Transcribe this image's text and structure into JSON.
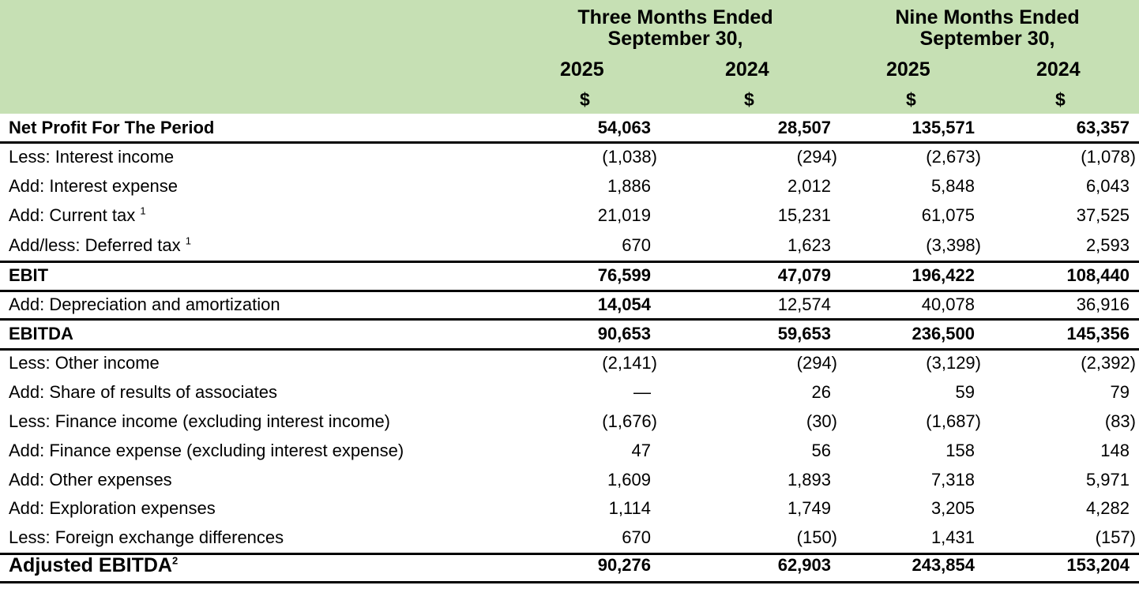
{
  "header": {
    "groups": [
      {
        "line1": "Three Months Ended",
        "line2": "September 30,"
      },
      {
        "line1": "Nine Months Ended",
        "line2": "September 30,"
      }
    ],
    "years": [
      "2025",
      "2024",
      "2025",
      "2024"
    ],
    "currency": [
      "$",
      "$",
      "$",
      "$"
    ]
  },
  "rows": [
    {
      "label": "Net Profit For The Period",
      "sup": "",
      "values": [
        "54,063",
        "28,507",
        "135,571",
        "63,357"
      ]
    },
    {
      "label": "Less: Interest income",
      "sup": "",
      "values": [
        "(1,038)",
        "(294)",
        "(2,673)",
        "(1,078)"
      ]
    },
    {
      "label": "Add: Interest expense",
      "sup": "",
      "values": [
        "1,886",
        "2,012",
        "5,848",
        "6,043"
      ]
    },
    {
      "label": "Add: Current tax ",
      "sup": "1",
      "values": [
        "21,019",
        "15,231",
        "61,075",
        "37,525"
      ]
    },
    {
      "label": "Add/less: Deferred tax ",
      "sup": "1",
      "values": [
        "670",
        "1,623",
        "(3,398)",
        "2,593"
      ]
    },
    {
      "label": "EBIT",
      "sup": "",
      "values": [
        "76,599",
        "47,079",
        "196,422",
        "108,440"
      ]
    },
    {
      "label": "Add: Depreciation and amortization",
      "sup": "",
      "values": [
        "14,054",
        "12,574",
        "40,078",
        "36,916"
      ]
    },
    {
      "label": "EBITDA",
      "sup": "",
      "values": [
        "90,653",
        "59,653",
        "236,500",
        "145,356"
      ]
    },
    {
      "label": "Less: Other income",
      "sup": "",
      "values": [
        "(2,141)",
        "(294)",
        "(3,129)",
        "(2,392)"
      ]
    },
    {
      "label": "Add: Share of results of associates",
      "sup": "",
      "values": [
        "—",
        "26",
        "59",
        "79"
      ]
    },
    {
      "label": "Less: Finance income (excluding interest income)",
      "sup": "",
      "values": [
        "(1,676)",
        "(30)",
        "(1,687)",
        "(83)"
      ]
    },
    {
      "label": "Add: Finance expense (excluding interest expense)",
      "sup": "",
      "values": [
        "47",
        "56",
        "158",
        "148"
      ]
    },
    {
      "label": "Add: Other expenses",
      "sup": "",
      "values": [
        "1,609",
        "1,893",
        "7,318",
        "5,971"
      ]
    },
    {
      "label": "Add: Exploration expenses",
      "sup": "",
      "values": [
        "1,114",
        "1,749",
        "3,205",
        "4,282"
      ]
    },
    {
      "label": "Less: Foreign exchange differences",
      "sup": "",
      "values": [
        "670",
        "(150)",
        "1,431",
        "(157)"
      ]
    },
    {
      "label": "Adjusted EBITDA",
      "sup": "2",
      "values": [
        "90,276",
        "62,903",
        "243,854",
        "153,204"
      ]
    }
  ]
}
